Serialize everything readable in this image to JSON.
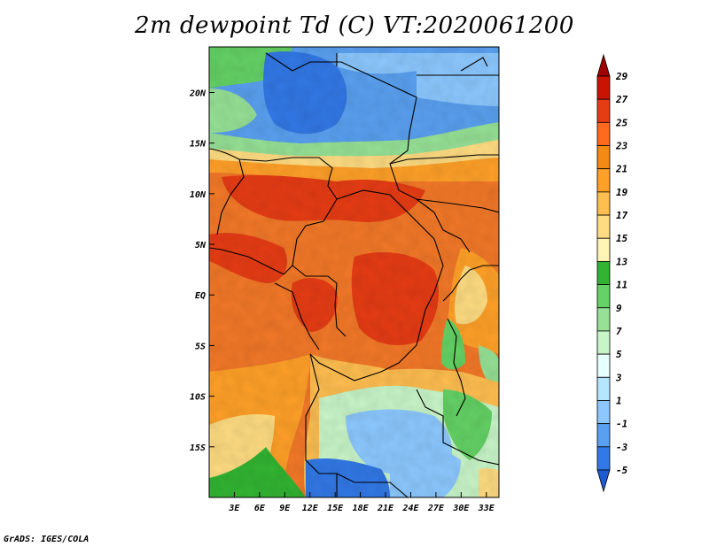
{
  "title": "2m dewpoint Td (C) VT:2020061200",
  "credit": "GrADS: IGES/COLA",
  "map": {
    "lat_labels": [
      {
        "value": 20,
        "label": "20N"
      },
      {
        "value": 15,
        "label": "15N"
      },
      {
        "value": 10,
        "label": "10N"
      },
      {
        "value": 5,
        "label": "5N"
      },
      {
        "value": 0,
        "label": "EQ"
      },
      {
        "value": -5,
        "label": "5S"
      },
      {
        "value": -10,
        "label": "10S"
      },
      {
        "value": -15,
        "label": "15S"
      }
    ],
    "lon_labels": [
      {
        "value": 3,
        "label": "3E"
      },
      {
        "value": 6,
        "label": "6E"
      },
      {
        "value": 9,
        "label": "9E"
      },
      {
        "value": 12,
        "label": "12E"
      },
      {
        "value": 15,
        "label": "15E"
      },
      {
        "value": 18,
        "label": "18E"
      },
      {
        "value": 21,
        "label": "21E"
      },
      {
        "value": 24,
        "label": "24E"
      },
      {
        "value": 27,
        "label": "27E"
      },
      {
        "value": 30,
        "label": "30E"
      },
      {
        "value": 33,
        "label": "33E"
      }
    ],
    "lon_range": [
      0,
      34.5
    ],
    "lat_range": [
      -20,
      24.5
    ]
  },
  "colorbar": {
    "labels": [
      "29",
      "27",
      "25",
      "23",
      "21",
      "19",
      "17",
      "15",
      "13",
      "11",
      "9",
      "7",
      "5",
      "3",
      "1",
      "-1",
      "-3",
      "-5"
    ],
    "colors": [
      "#a00000",
      "#c81400",
      "#e63c14",
      "#ff6a1e",
      "#f28a14",
      "#ffa028",
      "#ffbe50",
      "#ffdc82",
      "#fff5b4",
      "#32b432",
      "#64d264",
      "#96e196",
      "#c8f5c8",
      "#e6ffff",
      "#b4e6ff",
      "#8cc8ff",
      "#5aa0f0",
      "#3278e6",
      "#1e5ad2"
    ]
  }
}
